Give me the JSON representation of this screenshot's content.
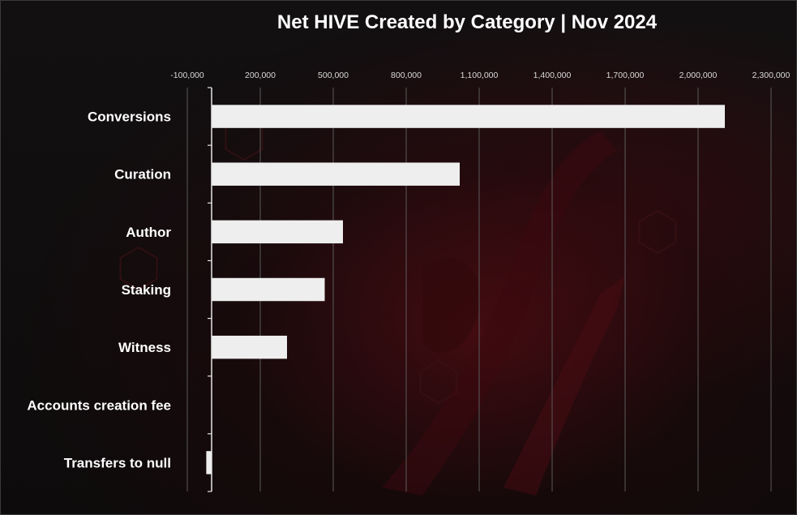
{
  "chart_data": {
    "type": "bar",
    "orientation": "horizontal",
    "title": "Net HIVE Created by Category | Nov 2024",
    "xlabel": "",
    "ylabel": "",
    "xlim": [
      -100000,
      2300000
    ],
    "x_ticks": [
      "-100,000",
      "200,000",
      "500,000",
      "800,000",
      "1,100,000",
      "1,400,000",
      "1,700,000",
      "2,000,000",
      "2,300,000"
    ],
    "x_tick_values": [
      -100000,
      200000,
      500000,
      800000,
      1100000,
      1400000,
      1700000,
      2000000,
      2300000
    ],
    "grid": true,
    "categories": [
      "Conversions",
      "Curation",
      "Author",
      "Staking",
      "Witness",
      "Accounts creation fee",
      "Transfers to null"
    ],
    "values": [
      2110000,
      1020000,
      540000,
      465000,
      310000,
      0,
      -22000
    ],
    "colors": {
      "bar": "#eeeeee",
      "gridline": "#5a5a5a",
      "axis": "#e6e6e6",
      "text": "#ffffff"
    }
  }
}
